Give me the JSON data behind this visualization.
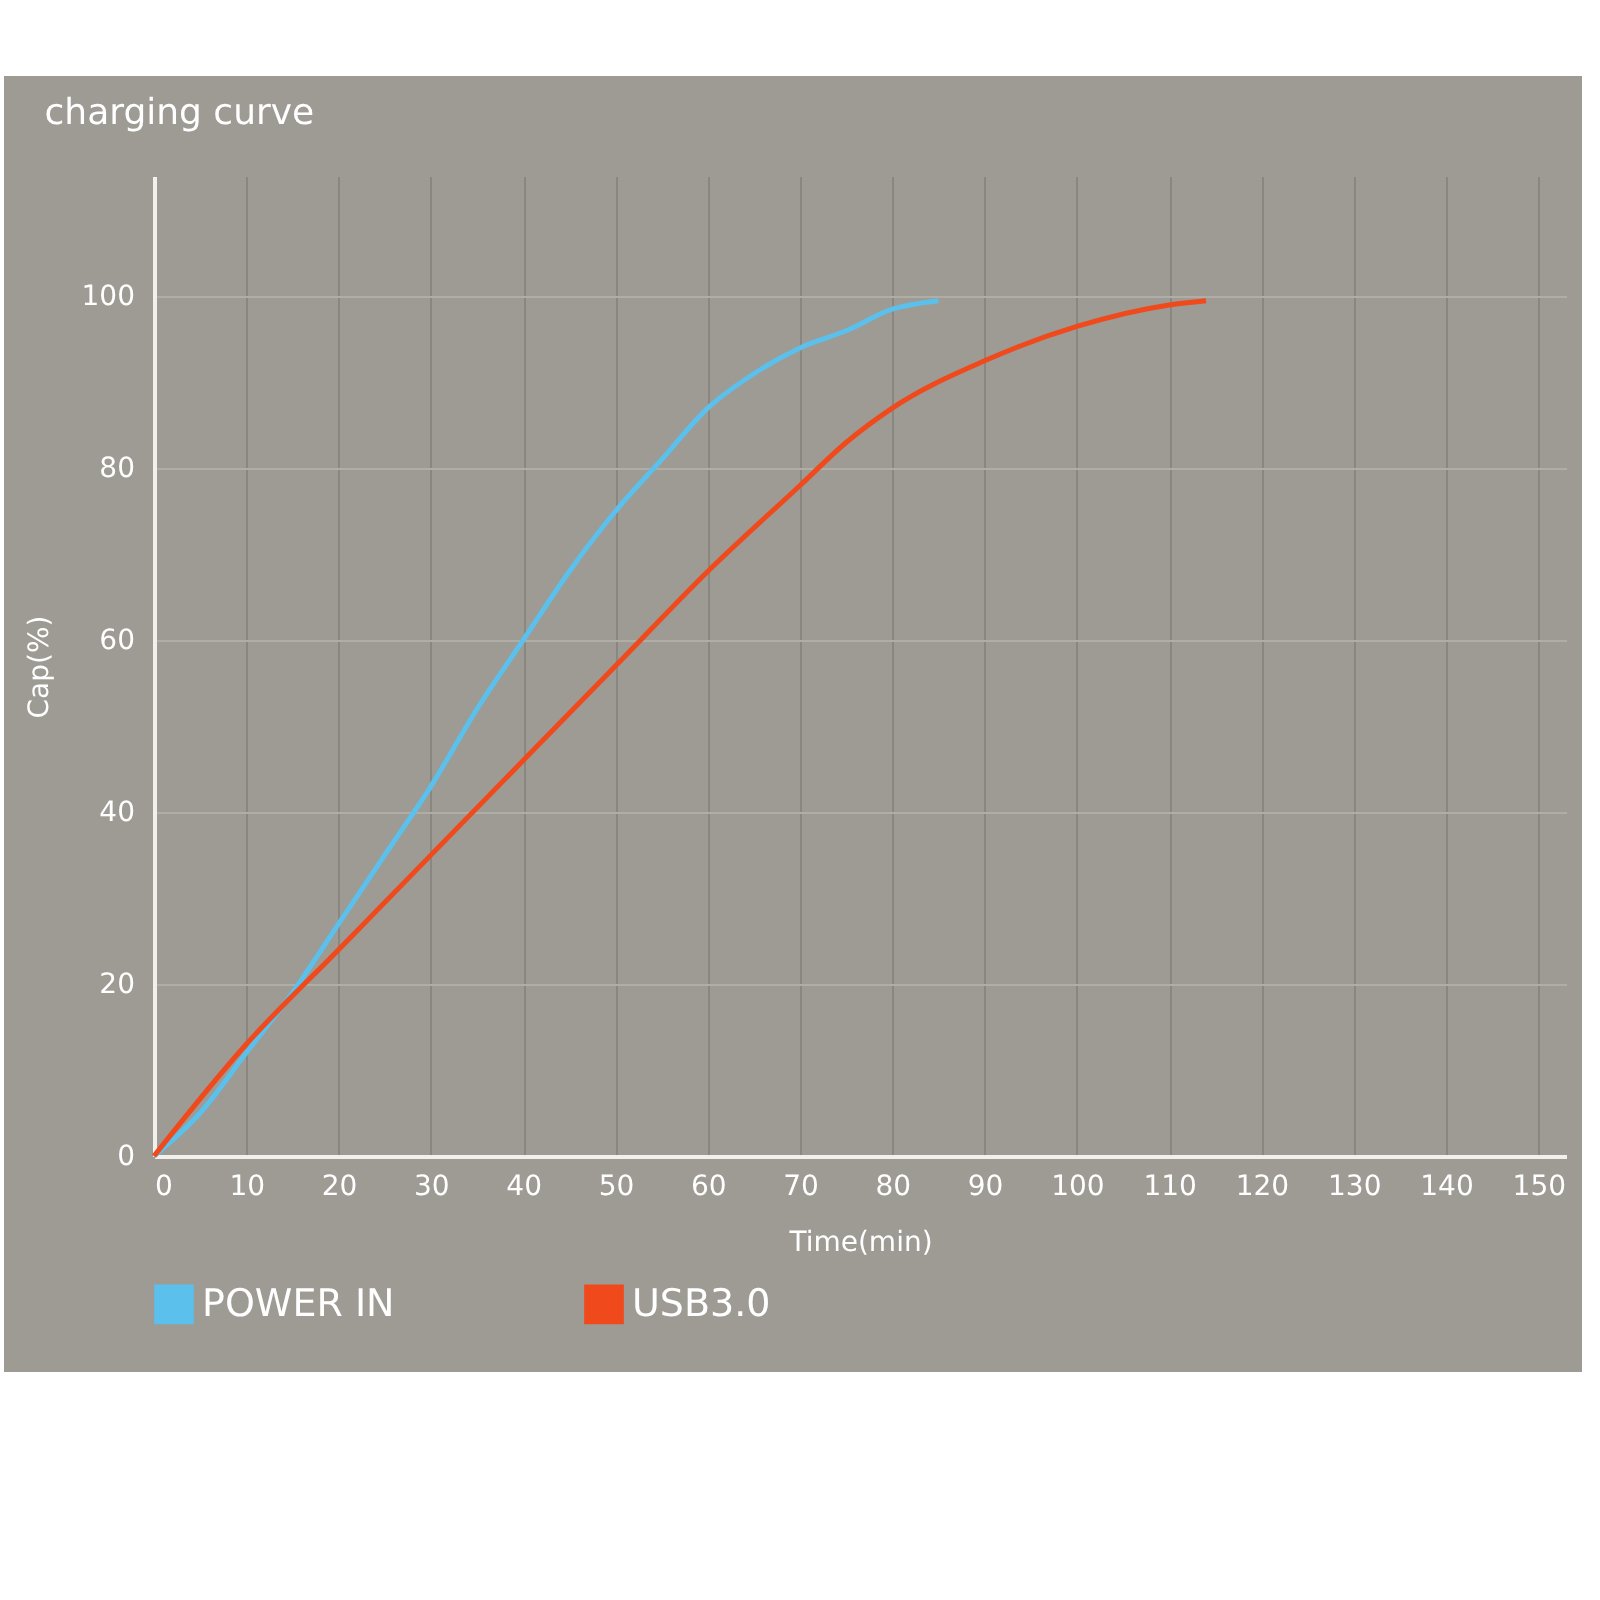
{
  "chart_data": {
    "type": "line",
    "title": "charging curve",
    "xlabel": "Time(min)",
    "ylabel": "Cap(%)",
    "xlim": [
      0,
      153
    ],
    "xticks": [
      0,
      10,
      20,
      30,
      40,
      50,
      60,
      70,
      80,
      90,
      100,
      110,
      120,
      130,
      140,
      150
    ],
    "ylim": [
      0,
      114
    ],
    "yticks": [
      0,
      20,
      40,
      60,
      80,
      100
    ],
    "grid": true,
    "legend": "bottom",
    "marker": "none",
    "line_style": "solid",
    "series": [
      {
        "name": "POWER IN",
        "color": "#5bc0eb",
        "x": [
          0,
          5,
          10,
          15,
          20,
          25,
          30,
          35,
          40,
          45,
          50,
          55,
          60,
          65,
          70,
          75,
          80,
          85
        ],
        "values": [
          0,
          5,
          12,
          19,
          27,
          35,
          43,
          52,
          60,
          68,
          75,
          81,
          87,
          91,
          94,
          96,
          98.5,
          99.5
        ]
      },
      {
        "name": "USB3.0",
        "color": "#f04a1c",
        "x": [
          0,
          10,
          20,
          30,
          40,
          50,
          60,
          70,
          75,
          80,
          90,
          100,
          110,
          114
        ],
        "values": [
          0,
          13,
          24,
          35,
          46,
          57,
          68,
          78,
          83,
          87,
          92.5,
          96.5,
          99,
          99.5
        ]
      }
    ]
  }
}
